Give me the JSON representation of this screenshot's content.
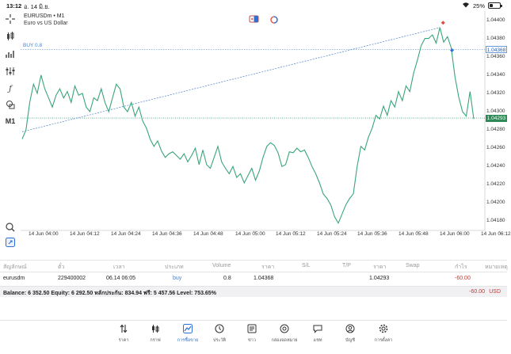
{
  "status": {
    "time": "13:12",
    "date": "อ. 14 มิ.ย.",
    "battery": "25%"
  },
  "chart": {
    "symbol": "EURUSDm • M1",
    "description": "Euro vs US Dollar",
    "buy_label": "BUY 0.8",
    "buy_price": "1.04368",
    "current_price": "1.04293",
    "timeframe_tool": "M1",
    "yticks": [
      "1.04400",
      "1.04380",
      "1.04360",
      "1.04340",
      "1.04320",
      "1.04300",
      "1.04280",
      "1.04260",
      "1.04240",
      "1.04220",
      "1.04200",
      "1.04180"
    ],
    "xticks": [
      "14 Jun 04:00",
      "14 Jun 04:12",
      "14 Jun 04:24",
      "14 Jun 04:36",
      "14 Jun 04:48",
      "14 Jun 05:00",
      "14 Jun 05:12",
      "14 Jun 05:24",
      "14 Jun 05:36",
      "14 Jun 05:48",
      "14 Jun 06:00",
      "14 Jun 06:12"
    ]
  },
  "chart_data": {
    "type": "line",
    "ylim": [
      1.0417,
      1.0441
    ],
    "series": [
      {
        "values": [
          1.0427,
          1.0428,
          1.0431,
          1.0433,
          1.0432,
          1.0434,
          1.04325,
          1.04315,
          1.04305,
          1.04318,
          1.04325,
          1.04315,
          1.04322,
          1.0431,
          1.04328,
          1.04318,
          1.0432,
          1.04305,
          1.043,
          1.04315,
          1.04312,
          1.04325,
          1.0431,
          1.043,
          1.04315,
          1.0433,
          1.04325,
          1.04305,
          1.043,
          1.0431,
          1.04295,
          1.04305,
          1.0429,
          1.04282,
          1.0427,
          1.04262,
          1.04268,
          1.04257,
          1.0425,
          1.04254,
          1.04256,
          1.04252,
          1.04248,
          1.04254,
          1.04245,
          1.04252,
          1.0426,
          1.04242,
          1.04258,
          1.04242,
          1.04238,
          1.0425,
          1.04262,
          1.04245,
          1.04238,
          1.04232,
          1.0424,
          1.04228,
          1.04232,
          1.04222,
          1.0423,
          1.04238,
          1.04225,
          1.04235,
          1.0425,
          1.04262,
          1.04266,
          1.04263,
          1.04255,
          1.0424,
          1.04242,
          1.04256,
          1.04255,
          1.0426,
          1.04256,
          1.04258,
          1.0425,
          1.0424,
          1.04232,
          1.04222,
          1.0421,
          1.04205,
          1.04198,
          1.04185,
          1.04178,
          1.04188,
          1.04198,
          1.04205,
          1.0421,
          1.0424,
          1.04262,
          1.04258,
          1.04272,
          1.04282,
          1.04296,
          1.04292,
          1.04306,
          1.04296,
          1.04312,
          1.04305,
          1.04322,
          1.04312,
          1.04328,
          1.04322,
          1.04342,
          1.04356,
          1.04372,
          1.0438,
          1.0438,
          1.04384,
          1.04375,
          1.04392,
          1.04376,
          1.04382,
          1.0437,
          1.04338,
          1.04316,
          1.043,
          1.04295,
          1.04322,
          1.04292
        ]
      }
    ],
    "buy_line": {
      "from_value": 1.04278,
      "to_value": 1.04392
    }
  },
  "table": {
    "headers": [
      "สัญลักษณ์",
      "ตั๋ว",
      "เวลา",
      "ประเภท",
      "Volume",
      "ราคา",
      "S/L",
      "T/P",
      "ราคา",
      "Swap",
      "กำไร",
      "หมายเหตุ"
    ],
    "row": {
      "symbol": "eurusdm",
      "ticket": "229400002",
      "time": "06.14 06:05",
      "type": "buy",
      "volume": "0.8",
      "price": "1.04368",
      "sl": "",
      "tp": "",
      "cur_price": "1.04293",
      "swap": "",
      "profit": "-60.00",
      "comment": ""
    },
    "balance": "Balance: 6 352.50 Equity: 6 292.50 หลักประกัน: 834.94 ฟรี: 5 457.56 Level: 753.65%",
    "total_profit": "-60.00",
    "currency": "USD"
  },
  "nav": [
    {
      "label": "ราคา",
      "icon": "arrows-icon"
    },
    {
      "label": "กราฟ",
      "icon": "candles-icon"
    },
    {
      "label": "การซื้อขาย",
      "icon": "trade-icon"
    },
    {
      "label": "ประวัติ",
      "icon": "history-icon"
    },
    {
      "label": "ข่าว",
      "icon": "news-icon"
    },
    {
      "label": "กล่องจดหมาย",
      "icon": "mail-icon"
    },
    {
      "label": "แชท",
      "icon": "chat-icon"
    },
    {
      "label": "บัญชี",
      "icon": "account-icon"
    },
    {
      "label": "การตั้งค่า",
      "icon": "settings-icon"
    }
  ],
  "colors": {
    "line": "#3aa57a",
    "buy": "#4d7fc7",
    "loss": "#d0342c",
    "active": "#2c6fd6"
  }
}
